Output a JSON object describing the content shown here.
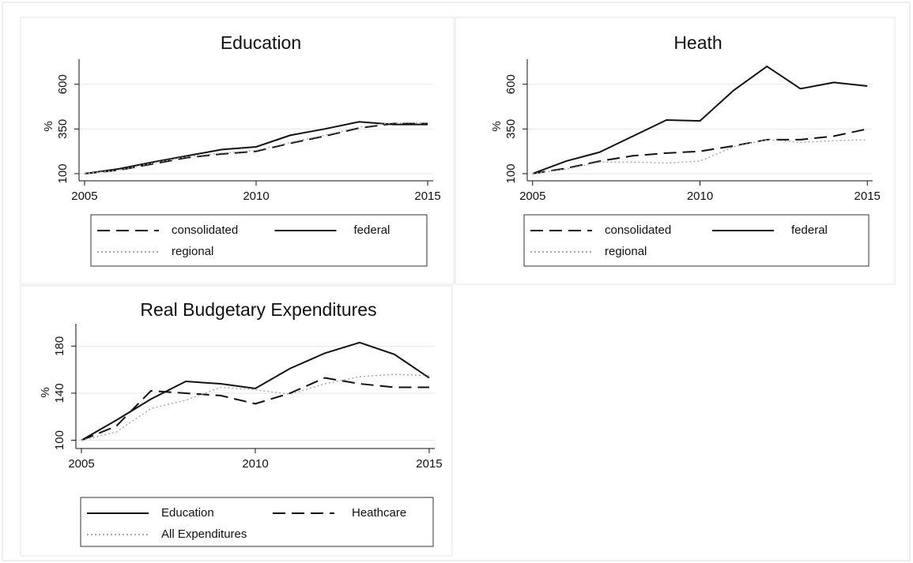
{
  "chart_data": [
    {
      "type": "line",
      "title": "Education",
      "ylabel": "%",
      "grid": true,
      "legend": "bottom",
      "x": [
        2005,
        2006,
        2007,
        2008,
        2009,
        2010,
        2011,
        2012,
        2013,
        2014,
        2015
      ],
      "xlim": [
        2004.84,
        2015.16
      ],
      "xticks": [
        2005,
        2010,
        2015
      ],
      "ylim": [
        60,
        740
      ],
      "yticks": [
        100,
        350,
        600
      ],
      "series": [
        {
          "name": "consolidated",
          "color": "#111111",
          "style": "dashed",
          "values": [
            100,
            120,
            155,
            190,
            210,
            225,
            270,
            310,
            355,
            380,
            380
          ]
        },
        {
          "name": "federal",
          "color": "#111111",
          "style": "solid",
          "values": [
            100,
            127,
            165,
            200,
            235,
            250,
            315,
            350,
            390,
            375,
            375
          ]
        },
        {
          "name": "regional",
          "color": "#aaaaaa",
          "style": "dotted",
          "values": [
            100,
            120,
            160,
            195,
            215,
            230,
            275,
            315,
            360,
            385,
            385
          ]
        }
      ]
    },
    {
      "type": "line",
      "title": "Heath",
      "ylabel": "%",
      "grid": true,
      "legend": "bottom",
      "x": [
        2005,
        2006,
        2007,
        2008,
        2009,
        2010,
        2011,
        2012,
        2013,
        2014,
        2015
      ],
      "xlim": [
        2004.84,
        2015.16
      ],
      "xticks": [
        2005,
        2010,
        2015
      ],
      "ylim": [
        60,
        740
      ],
      "yticks": [
        100,
        350,
        600
      ],
      "series": [
        {
          "name": "consolidated",
          "color": "#111111",
          "style": "dashed",
          "values": [
            100,
            130,
            170,
            200,
            215,
            225,
            255,
            290,
            290,
            310,
            350
          ]
        },
        {
          "name": "federal",
          "color": "#111111",
          "style": "solid",
          "values": [
            100,
            170,
            220,
            310,
            400,
            395,
            565,
            700,
            575,
            610,
            590
          ]
        },
        {
          "name": "regional",
          "color": "#aaaaaa",
          "style": "dotted",
          "values": [
            100,
            125,
            165,
            165,
            160,
            170,
            250,
            290,
            275,
            285,
            290
          ]
        }
      ]
    },
    {
      "type": "line",
      "title": "Real Budgetary Expenditures",
      "ylabel": "%",
      "grid": true,
      "legend": "bottom",
      "x": [
        2005,
        2006,
        2007,
        2008,
        2009,
        2010,
        2011,
        2012,
        2013,
        2014,
        2015
      ],
      "xlim": [
        2004.84,
        2015.16
      ],
      "xticks": [
        2005,
        2010,
        2015
      ],
      "ylim": [
        93,
        199
      ],
      "yticks": [
        100,
        140,
        180
      ],
      "series": [
        {
          "name": "Education",
          "color": "#111111",
          "style": "solid",
          "values": [
            100,
            117,
            135,
            150,
            148,
            144,
            161,
            174,
            183,
            173,
            153
          ]
        },
        {
          "name": "Heathcare",
          "color": "#111111",
          "style": "dashed",
          "values": [
            100,
            112,
            142,
            140,
            138,
            131,
            140,
            153,
            148,
            145,
            145
          ]
        },
        {
          "name": "All Expenditures",
          "color": "#aaaaaa",
          "style": "dotted",
          "values": [
            100,
            107,
            127,
            134,
            145,
            143,
            139,
            148,
            154,
            156,
            155
          ]
        }
      ]
    }
  ]
}
